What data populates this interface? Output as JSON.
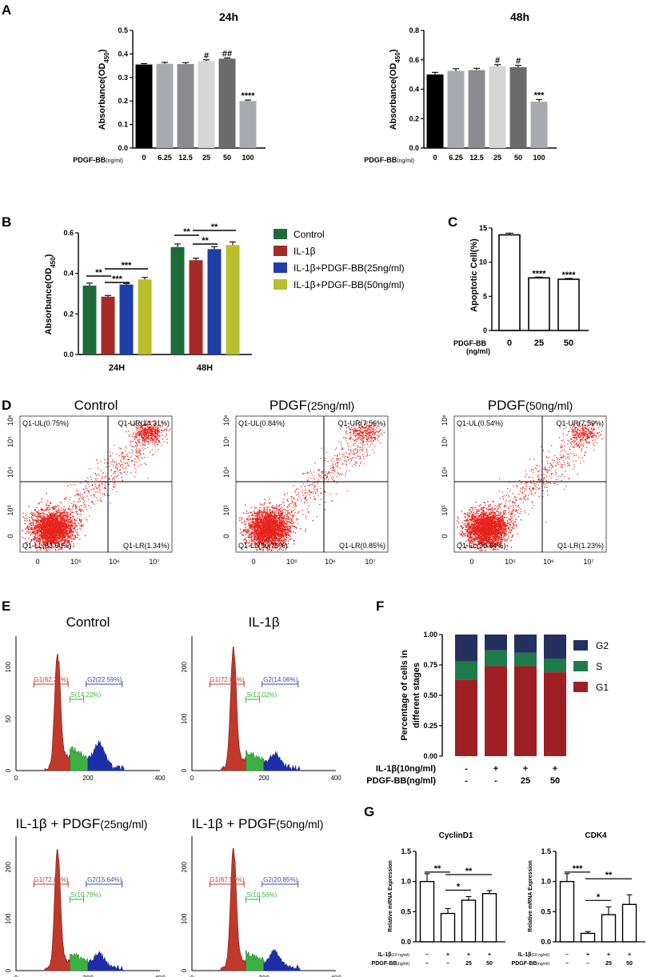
{
  "panel_labels": [
    "A",
    "B",
    "C",
    "D",
    "E",
    "F",
    "G"
  ],
  "colors": {
    "control": "#1e6b3a",
    "il1b": "#a52a2a",
    "pdgf25": "#1f3fa6",
    "pdgf50": "#b8bf2a",
    "g2": "#24305e",
    "s": "#1f7a4a",
    "g1": "#9e1f24",
    "flow": "#e8231d",
    "hist_red": "#c0392b",
    "hist_green": "#3cb043",
    "hist_blue": "#1c2fa8"
  },
  "chart_data": [
    {
      "id": "A1",
      "type": "bar",
      "title": "24h",
      "ylabel": "Absorbance(OD450)",
      "ylabel_main": "Absorbance(OD",
      "ylabel_sub": "450",
      "ylabel_end": ")",
      "xlabel_main": "PDGF-BB",
      "xlabel_unit": "(ng/ml)",
      "categories": [
        "0",
        "6.25",
        "12.5",
        "25",
        "50",
        "100"
      ],
      "values": [
        0.355,
        0.358,
        0.357,
        0.37,
        0.38,
        0.2
      ],
      "errors": [
        0.004,
        0.006,
        0.006,
        0.005,
        0.003,
        0.004
      ],
      "fills": [
        "#000000",
        "#a9a9b0",
        "#8c8c90",
        "#d6d6d6",
        "#6b6b6b",
        "#a9a9b0"
      ],
      "annotations": [
        "",
        "",
        "",
        "#",
        "##",
        "****"
      ],
      "ylim": [
        0,
        0.5
      ],
      "yticks": [
        "0.0",
        "0.1",
        "0.2",
        "0.3",
        "0.4",
        "0.5"
      ]
    },
    {
      "id": "A2",
      "type": "bar",
      "title": "48h",
      "ylabel": "Absorbance(OD450)",
      "ylabel_main": "Absorbance(OD",
      "ylabel_sub": "450",
      "ylabel_end": ")",
      "xlabel_main": "PDGF-BB",
      "xlabel_unit": "(ng/ml)",
      "categories": [
        "0",
        "6.25",
        "12.5",
        "25",
        "50",
        "100"
      ],
      "values": [
        0.5,
        0.525,
        0.53,
        0.555,
        0.55,
        0.315
      ],
      "errors": [
        0.015,
        0.015,
        0.012,
        0.012,
        0.012,
        0.015
      ],
      "fills": [
        "#000000",
        "#a9a9b0",
        "#8c8c90",
        "#d6d6d6",
        "#6b6b6b",
        "#a9a9b0"
      ],
      "annotations": [
        "",
        "",
        "",
        "#",
        "#",
        "***"
      ],
      "ylim": [
        0,
        0.8
      ],
      "yticks": [
        "0.0",
        "0.2",
        "0.4",
        "0.6",
        "0.8"
      ]
    },
    {
      "id": "B",
      "type": "bar",
      "ylabel_main": "Absorbance(OD",
      "ylabel_sub": "450",
      "ylabel_end": ")",
      "categories": [
        "24H",
        "48H"
      ],
      "series": [
        {
          "name": "Control",
          "values": [
            0.34,
            0.53
          ]
        },
        {
          "name": "IL-1β",
          "values": [
            0.285,
            0.465
          ]
        },
        {
          "name": "IL-1β+PDGF-BB(25ng/ml)",
          "values": [
            0.345,
            0.52
          ]
        },
        {
          "name": "IL-1β+PDGF-BB(50ng/ml)",
          "values": [
            0.37,
            0.54
          ]
        }
      ],
      "errors": [
        [
          0.012,
          0.015
        ],
        [
          0.006,
          0.01
        ],
        [
          0.005,
          0.012
        ],
        [
          0.01,
          0.015
        ]
      ],
      "significance": [
        {
          "group": 0,
          "from": 0,
          "to": 1,
          "label": "**"
        },
        {
          "group": 0,
          "from": 1,
          "to": 2,
          "label": "***"
        },
        {
          "group": 0,
          "from": 1,
          "to": 3,
          "label": "***"
        },
        {
          "group": 1,
          "from": 0,
          "to": 1,
          "label": "**"
        },
        {
          "group": 1,
          "from": 1,
          "to": 2,
          "label": "**"
        },
        {
          "group": 1,
          "from": 1,
          "to": 3,
          "label": "**"
        }
      ],
      "ylim": [
        0,
        0.6
      ],
      "yticks": [
        "0.0",
        "0.2",
        "0.4",
        "0.6"
      ]
    },
    {
      "id": "C",
      "type": "bar",
      "ylabel": "Apoptotic Cell(%)",
      "xlabel_main": "PDGF-BB",
      "xlabel_unit": "(ng/ml)",
      "categories": [
        "0",
        "25",
        "50"
      ],
      "values": [
        14.0,
        7.7,
        7.5
      ],
      "errors": [
        0.25,
        0.12,
        0.12
      ],
      "annotations": [
        "",
        "****",
        "****"
      ],
      "ylim": [
        0,
        15
      ],
      "yticks": [
        "0",
        "5",
        "10",
        "15"
      ]
    },
    {
      "id": "D",
      "type": "scatter",
      "xticks": [
        "0",
        "10⁵",
        "10⁶",
        "10⁷"
      ],
      "yticks": [
        "0",
        "10³",
        "10⁴",
        "10⁵",
        "10⁶"
      ],
      "plots": [
        {
          "title": "Control",
          "UL": "Q1-UL(0.75%)",
          "UR": "Q1-UR(14.31%)",
          "LL": "Q1-LL(83.60%)",
          "LR": "Q1-LR(1.34%)",
          "ur_fraction": 0.1431
        },
        {
          "title_main": "PDGF",
          "title_unit": "(25ng/ml)",
          "title": "PDGF(25ng/ml)",
          "UL": "Q1-UL(0.84%)",
          "UR": "Q1-UR(7.56%)",
          "LL": "Q1-LL(90.75%)",
          "LR": "Q1-LR(0.85%)",
          "ur_fraction": 0.0756
        },
        {
          "title_main": "PDGF",
          "title_unit": "(50ng/ml)",
          "title": "PDGF(50ng/ml)",
          "UL": "Q1-UL(0.54%)",
          "UR": "Q1-UR(7.59%)",
          "LL": "Q1-LL(90.64%)",
          "LR": "Q1-LR(1.23%)",
          "ur_fraction": 0.0759
        }
      ]
    },
    {
      "id": "E",
      "type": "area",
      "xticks": [
        "0",
        "200",
        "400"
      ],
      "plots": [
        {
          "title": "Control",
          "G1": "G1(62.25%)",
          "S": "S(14.22%)",
          "G2": "G2(22.59%)",
          "yticks": [
            "0",
            "50",
            "100"
          ],
          "ymax": 130,
          "peak": 112,
          "s_level": 20,
          "g2_peak": 22
        },
        {
          "title": "IL-1β",
          "G1": "G1(72.83%)",
          "S": "S(12.02%)",
          "G2": "G2(14.06%)",
          "yticks": [
            "0",
            "100",
            "200"
          ],
          "ymax": 260,
          "peak": 235,
          "s_level": 30,
          "g2_peak": 25
        },
        {
          "title_main": "IL-1β + PDGF",
          "title_unit": "(25ng/ml)",
          "title": "IL-1β + PDGF(25ng/ml)",
          "G1": "G1(72.89%)",
          "S": "S(10.76%)",
          "G2": "G2(15.64%)",
          "yticks": [
            "0",
            "100",
            "200"
          ],
          "ymax": 260,
          "peak": 235,
          "s_level": 28,
          "g2_peak": 25
        },
        {
          "title_main": "IL-1β + PDGF",
          "title_unit": "(50ng/ml)",
          "title": "IL-1β + PDGF(50ng/ml)",
          "G1": "G1(67.53%)",
          "S": "S(10.56%)",
          "G2": "G2(20.85%)",
          "yticks": [
            "0",
            "100",
            "200"
          ],
          "ymax": 260,
          "peak": 235,
          "s_level": 28,
          "g2_peak": 30
        }
      ]
    },
    {
      "id": "F",
      "type": "bar",
      "stacked": true,
      "ylabel": "Percentage of cells in different stages",
      "ylabel_l1": "Percentage of cells in",
      "ylabel_l2": "different stages",
      "row1_label": "IL-1β(10ng/ml)",
      "row2_label": "PDGF-BB(ng/ml)",
      "row1": [
        "-",
        "+",
        "+",
        "+"
      ],
      "row2": [
        "-",
        "-",
        "25",
        "50"
      ],
      "series": [
        {
          "name": "G1",
          "values": [
            0.63,
            0.74,
            0.74,
            0.69
          ]
        },
        {
          "name": "S",
          "values": [
            0.15,
            0.13,
            0.11,
            0.11
          ]
        },
        {
          "name": "G2",
          "values": [
            0.22,
            0.13,
            0.15,
            0.2
          ]
        }
      ],
      "ylim": [
        0,
        1
      ],
      "yticks": [
        "0.00",
        "0.25",
        "0.50",
        "0.75",
        "1.00"
      ]
    },
    {
      "id": "G1",
      "type": "bar",
      "title": "CyclinD1",
      "ylabel": "Relative mRNA Expression",
      "row1_label": "IL-1β",
      "row1_unit": "(10 ng/ml)",
      "row2_label": "PDGF-BB",
      "row2_unit": "(ng/ml)",
      "row1": [
        "–",
        "+",
        "+",
        "+"
      ],
      "row2": [
        "–",
        "–",
        "25",
        "50"
      ],
      "values": [
        1.0,
        0.47,
        0.69,
        0.8
      ],
      "errors": [
        0.13,
        0.08,
        0.06,
        0.05
      ],
      "significance": [
        {
          "from": 0,
          "to": 1,
          "label": "**"
        },
        {
          "from": 1,
          "to": 2,
          "label": "*"
        },
        {
          "from": 1,
          "to": 3,
          "label": "**"
        }
      ],
      "ylim": [
        0,
        1.5
      ],
      "yticks": [
        "0.0",
        "0.5",
        "1.0",
        "1.5"
      ]
    },
    {
      "id": "G2",
      "type": "bar",
      "title": "CDK4",
      "ylabel": "Relative mRNA Expression",
      "row1_label": "IL-1β",
      "row1_unit": "(10 ng/ml)",
      "row2_label": "PDGF-BB",
      "row2_unit": "(ng/ml)",
      "row1": [
        "–",
        "+",
        "+",
        "+"
      ],
      "row2": [
        "–",
        "–",
        "25",
        "50"
      ],
      "values": [
        1.0,
        0.14,
        0.45,
        0.62
      ],
      "errors": [
        0.13,
        0.03,
        0.13,
        0.16
      ],
      "significance": [
        {
          "from": 0,
          "to": 1,
          "label": "***"
        },
        {
          "from": 1,
          "to": 2,
          "label": "*"
        },
        {
          "from": 1,
          "to": 3,
          "label": "**"
        }
      ],
      "ylim": [
        0,
        1.5
      ],
      "yticks": [
        "0.0",
        "0.5",
        "1.0",
        "1.5"
      ]
    }
  ]
}
